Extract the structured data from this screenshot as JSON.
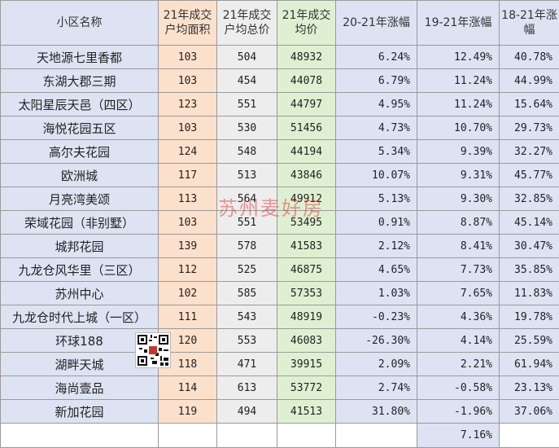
{
  "headers": {
    "name": "小区名称",
    "area": "21年成交户均面积",
    "total": "21年成交户均总价",
    "price": "21年成交均价",
    "g2021": "20-21年涨幅",
    "g1921": "19-21年涨幅",
    "g1821": "18-21年涨幅"
  },
  "rows": [
    {
      "name": "天地源七里香都",
      "area": "103",
      "total": "504",
      "price": "48932",
      "g2021": "6.24%",
      "g1921": "12.49%",
      "g1821": "40.78%"
    },
    {
      "name": "东湖大郡三期",
      "area": "103",
      "total": "454",
      "price": "44078",
      "g2021": "6.79%",
      "g1921": "11.24%",
      "g1821": "44.99%"
    },
    {
      "name": "太阳星辰天邑（四区）",
      "area": "123",
      "total": "551",
      "price": "44797",
      "g2021": "4.95%",
      "g1921": "11.24%",
      "g1821": "15.64%"
    },
    {
      "name": "海悦花园五区",
      "area": "103",
      "total": "530",
      "price": "51456",
      "g2021": "4.73%",
      "g1921": "10.70%",
      "g1821": "29.73%"
    },
    {
      "name": "高尔夫花园",
      "area": "124",
      "total": "548",
      "price": "44194",
      "g2021": "5.34%",
      "g1921": "9.39%",
      "g1821": "32.27%"
    },
    {
      "name": "欧洲城",
      "area": "117",
      "total": "513",
      "price": "43846",
      "g2021": "10.07%",
      "g1921": "9.31%",
      "g1821": "45.77%"
    },
    {
      "name": "月亮湾美颂",
      "area": "113",
      "total": "564",
      "price": "49912",
      "g2021": "5.13%",
      "g1921": "9.30%",
      "g1821": "32.85%"
    },
    {
      "name": "荣域花园（非别墅）",
      "area": "103",
      "total": "551",
      "price": "53495",
      "g2021": "0.91%",
      "g1921": "8.87%",
      "g1821": "45.14%"
    },
    {
      "name": "城邦花园",
      "area": "139",
      "total": "578",
      "price": "41583",
      "g2021": "2.12%",
      "g1921": "8.41%",
      "g1821": "30.47%"
    },
    {
      "name": "九龙仓风华里（三区）",
      "area": "112",
      "total": "525",
      "price": "46875",
      "g2021": "4.65%",
      "g1921": "7.73%",
      "g1821": "35.85%"
    },
    {
      "name": "苏州中心",
      "area": "102",
      "total": "585",
      "price": "57353",
      "g2021": "1.03%",
      "g1921": "7.65%",
      "g1821": "11.83%"
    },
    {
      "name": "九龙仓时代上城（一区）",
      "area": "111",
      "total": "543",
      "price": "48919",
      "g2021": "-0.23%",
      "g1921": "4.36%",
      "g1821": "19.78%"
    },
    {
      "name": "环球188",
      "area": "120",
      "total": "553",
      "price": "46083",
      "g2021": "-26.30%",
      "g1921": "4.14%",
      "g1821": "25.59%"
    },
    {
      "name": "湖畔天城",
      "area": "118",
      "total": "471",
      "price": "39915",
      "g2021": "2.09%",
      "g1921": "2.21%",
      "g1821": "61.94%"
    },
    {
      "name": "海尚壹品",
      "area": "114",
      "total": "613",
      "price": "53772",
      "g2021": "2.74%",
      "g1921": "-0.58%",
      "g1821": "23.13%"
    },
    {
      "name": "新加花园",
      "area": "119",
      "total": "494",
      "price": "41513",
      "g2021": "31.80%",
      "g1921": "-1.96%",
      "g1821": "37.06%"
    }
  ],
  "summary": {
    "g1921_avg": "7.16%"
  },
  "watermark": "苏州麦好房",
  "colors": {
    "name_col": "#dde3f3",
    "area_col": "#fbe0cc",
    "total_col": "#ededed",
    "price_col": "#dff0d2",
    "pct_col": "#dde3f3",
    "grid": "#9a9a9a",
    "watermark": "#dc2828"
  }
}
